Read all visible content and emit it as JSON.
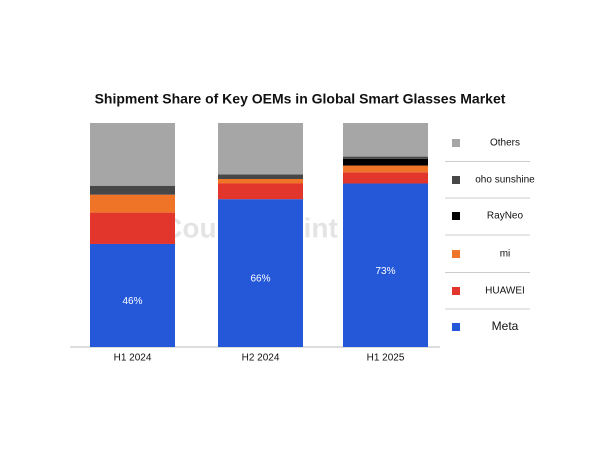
{
  "chart_data": {
    "type": "stacked_bar",
    "title": "Shipment Share of Key OEMs in Global Smart Glasses Market",
    "watermark": "Counterpoint",
    "categories": [
      "H1 2024",
      "H2 2024",
      "H1 2025"
    ],
    "ylim": [
      0,
      100
    ],
    "series": [
      {
        "name": "Meta",
        "color": "#2458d9",
        "values": [
          46,
          66,
          73
        ],
        "value_labels": [
          "46%",
          "66%",
          "73%"
        ]
      },
      {
        "name": "HUAWEI",
        "color": "#e2352c",
        "values": [
          14,
          7,
          5
        ]
      },
      {
        "name": "mi",
        "color": "#f07427",
        "values": [
          8,
          2,
          3
        ]
      },
      {
        "name": "RayNeo",
        "color": "#000000",
        "values": [
          0,
          0,
          3
        ]
      },
      {
        "name": "oho sunshine",
        "color": "#474747",
        "values": [
          4,
          2,
          1
        ]
      },
      {
        "name": "Others",
        "color": "#a6a6a6",
        "values": [
          28,
          23,
          15
        ]
      }
    ]
  }
}
